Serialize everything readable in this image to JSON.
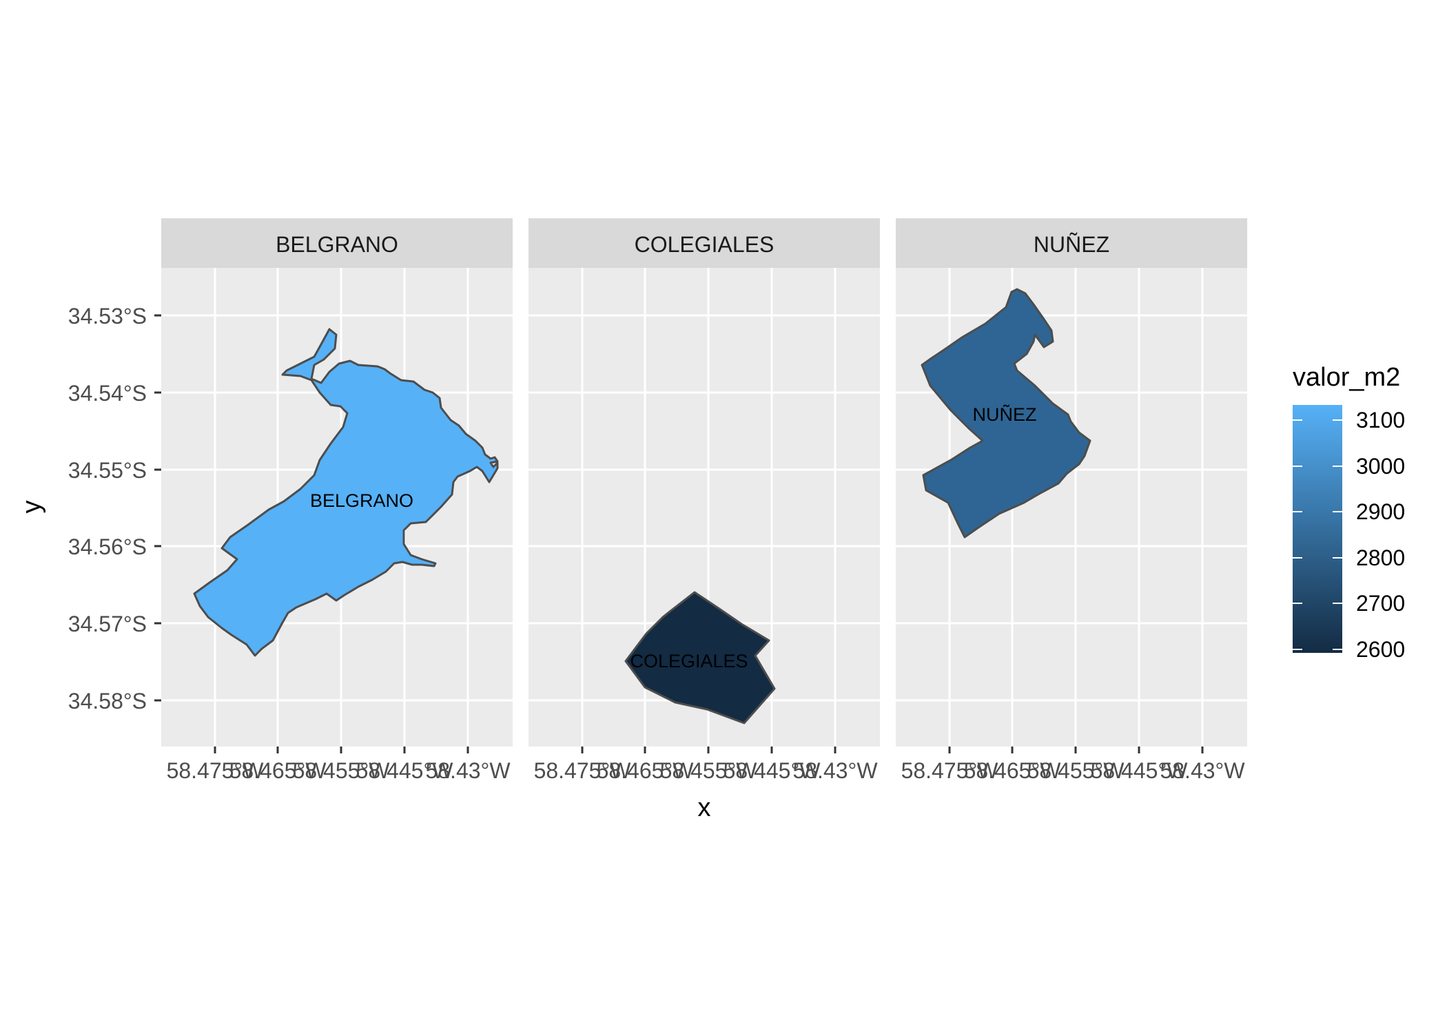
{
  "map": {
    "xlabel": "x",
    "ylabel": "y",
    "y_ticks": [
      "34.53°S",
      "34.54°S",
      "34.55°S",
      "34.56°S",
      "34.57°S",
      "34.58°S"
    ],
    "x_ticks": [
      "58.475°W",
      "58.465°W",
      "58.455°W",
      "58.445°W",
      "58.43°W"
    ],
    "facets": [
      {
        "name": "BELGRANO",
        "region_label": "BELGRANO",
        "valor_m2": 3130,
        "fill": "#56B1F7"
      },
      {
        "name": "COLEGIALES",
        "region_label": "COLEGIALES",
        "valor_m2": 2600,
        "fill": "#132B43"
      },
      {
        "name": "NUÑEZ",
        "region_label": "NUÑEZ",
        "valor_m2": 2830,
        "fill": "#2E6594"
      }
    ]
  },
  "legend": {
    "title": "valor_m2",
    "labels": [
      "3100",
      "3000",
      "2900",
      "2800",
      "2700",
      "2600"
    ],
    "low_color": "#132B43",
    "high_color": "#56B1F7"
  }
}
